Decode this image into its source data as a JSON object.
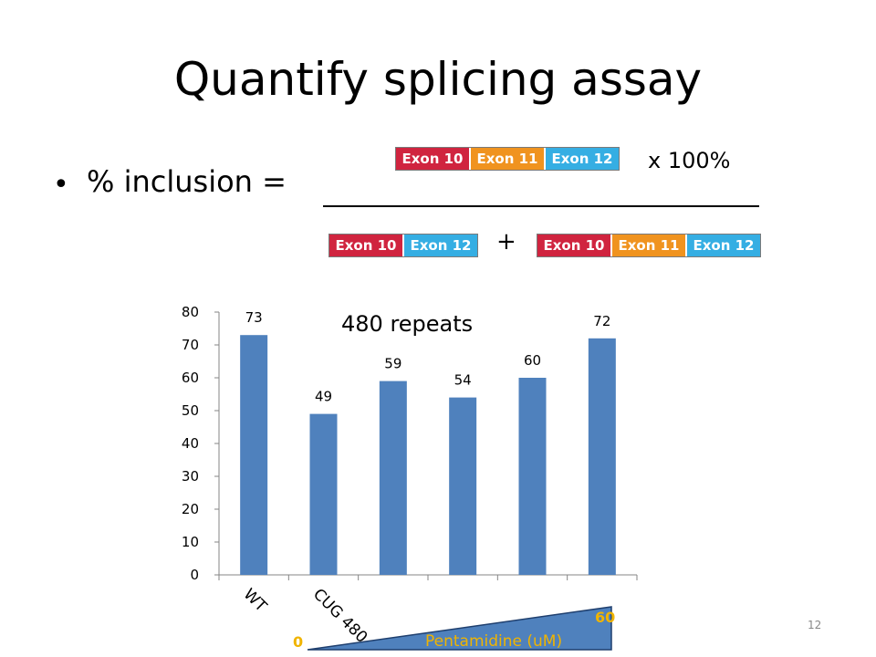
{
  "slide": {
    "title": "Quantify splicing assay",
    "bullet": "•",
    "inclusion_label": "% inclusion =",
    "times_label": "x  100%",
    "plus_label": "+",
    "page_number": "12"
  },
  "exons": {
    "numerator": [
      "Exon 10",
      "Exon 11",
      "Exon 12"
    ],
    "denominator_skip": [
      "Exon 10",
      "Exon 12"
    ],
    "denominator_include": [
      "Exon 10",
      "Exon 11",
      "Exon 12"
    ]
  },
  "colors": {
    "exon10": "#d0243f",
    "exon11": "#f0931f",
    "exon12": "#35aee3",
    "bar": "#4f81bd",
    "triangle_fill": "#4f81bd",
    "triangle_text": "#f0b400"
  },
  "chart_data": {
    "type": "bar",
    "annotation": "480 repeats",
    "categories": [
      "WT",
      "CUG 480",
      "",
      "",
      "",
      ""
    ],
    "values": [
      73,
      49,
      59,
      54,
      60,
      72
    ],
    "data_labels": [
      "73",
      "49",
      "59",
      "54",
      "60",
      "72"
    ],
    "ylim": [
      0,
      80
    ],
    "yticks": [
      0,
      10,
      20,
      30,
      40,
      50,
      60,
      70,
      80
    ],
    "grid": false,
    "legend": "none",
    "gradient_label": "Pentamidine (uM)",
    "gradient_min": "0",
    "gradient_max": "60"
  }
}
